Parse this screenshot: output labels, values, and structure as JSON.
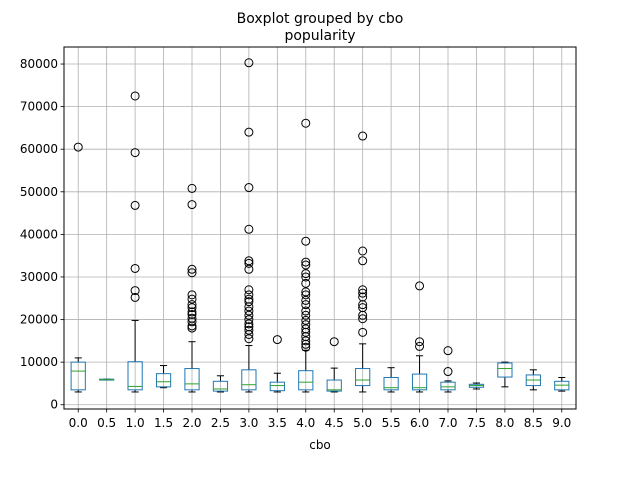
{
  "chart_data": {
    "type": "boxplot",
    "suptitle": "Boxplot grouped by cbo",
    "title": "popularity",
    "xlabel": "cbo",
    "ylabel": "",
    "ylim": [
      -1000,
      84000
    ],
    "yticks": [
      0,
      10000,
      20000,
      30000,
      40000,
      50000,
      60000,
      70000,
      80000
    ],
    "yticklabels": [
      "0",
      "10000",
      "20000",
      "30000",
      "40000",
      "50000",
      "60000",
      "70000",
      "80000"
    ],
    "grid": true,
    "colors": {
      "box": "#1f77b4",
      "median": "#2ca02c",
      "whisker": "#000000",
      "grid": "#b0b0b0",
      "outlier": "#000000"
    },
    "groups": [
      {
        "label": "0.0",
        "whislo": 3000,
        "q1": 3500,
        "med": 7900,
        "q3": 10000,
        "whishi": 11000,
        "fliers": [
          60500
        ]
      },
      {
        "label": "0.5",
        "whislo": 5800,
        "q1": 5800,
        "med": 5900,
        "q3": 6000,
        "whishi": 6000,
        "fliers": []
      },
      {
        "label": "1.0",
        "whislo": 3000,
        "q1": 3500,
        "med": 4300,
        "q3": 10100,
        "whishi": 19800,
        "fliers": [
          25200,
          26800,
          32000,
          46800,
          59200,
          72500
        ]
      },
      {
        "label": "1.5",
        "whislo": 4000,
        "q1": 4200,
        "med": 5400,
        "q3": 7300,
        "whishi": 9200,
        "fliers": []
      },
      {
        "label": "2.0",
        "whislo": 3000,
        "q1": 3500,
        "med": 4900,
        "q3": 8500,
        "whishi": 14800,
        "fliers": [
          18000,
          18500,
          19500,
          20300,
          21200,
          21800,
          22800,
          23500,
          24800,
          25800,
          31000,
          31800,
          47000,
          50800
        ]
      },
      {
        "label": "2.5",
        "whislo": 3000,
        "q1": 3200,
        "med": 3700,
        "q3": 5500,
        "whishi": 6800,
        "fliers": []
      },
      {
        "label": "3.0",
        "whislo": 3000,
        "q1": 3500,
        "med": 4700,
        "q3": 8200,
        "whishi": 13900,
        "fliers": [
          15500,
          16500,
          17500,
          18300,
          19000,
          20000,
          21000,
          22000,
          23000,
          24200,
          24800,
          25800,
          27000,
          31800,
          33200,
          33800,
          41200,
          51000,
          64000,
          80300
        ]
      },
      {
        "label": "3.5",
        "whislo": 3000,
        "q1": 3300,
        "med": 4500,
        "q3": 5300,
        "whishi": 7400,
        "fliers": [
          15300
        ]
      },
      {
        "label": "4.0",
        "whislo": 3000,
        "q1": 3500,
        "med": 5300,
        "q3": 8000,
        "whishi": 12800,
        "fliers": [
          13500,
          14200,
          15000,
          16000,
          17000,
          17800,
          18800,
          19800,
          21000,
          22000,
          23500,
          24500,
          25800,
          26500,
          28500,
          30000,
          30800,
          32800,
          33500,
          38400,
          66100
        ]
      },
      {
        "label": "4.5",
        "whislo": 3000,
        "q1": 3200,
        "med": 3500,
        "q3": 5800,
        "whishi": 8600,
        "fliers": [
          14800
        ]
      },
      {
        "label": "5.0",
        "whislo": 3000,
        "q1": 4500,
        "med": 5800,
        "q3": 8500,
        "whishi": 14300,
        "fliers": [
          17000,
          20200,
          21000,
          22800,
          23500,
          25300,
          26200,
          27000,
          33800,
          36100,
          63100
        ]
      },
      {
        "label": "5.5",
        "whislo": 3000,
        "q1": 3500,
        "med": 4000,
        "q3": 6400,
        "whishi": 8700,
        "fliers": []
      },
      {
        "label": "6.0",
        "whislo": 3000,
        "q1": 3500,
        "med": 4000,
        "q3": 7200,
        "whishi": 11500,
        "fliers": [
          13700,
          14800,
          27900
        ]
      },
      {
        "label": "7.0",
        "whislo": 3000,
        "q1": 3500,
        "med": 4200,
        "q3": 5300,
        "whishi": 5600,
        "fliers": [
          7800,
          12700
        ]
      },
      {
        "label": "7.5",
        "whislo": 3700,
        "q1": 4100,
        "med": 4500,
        "q3": 4800,
        "whishi": 5100,
        "fliers": []
      },
      {
        "label": "8.0",
        "whislo": 4200,
        "q1": 6500,
        "med": 8500,
        "q3": 9800,
        "whishi": 10000,
        "fliers": []
      },
      {
        "label": "8.5",
        "whislo": 3500,
        "q1": 4500,
        "med": 5800,
        "q3": 7000,
        "whishi": 8200,
        "fliers": []
      },
      {
        "label": "9.0",
        "whislo": 3200,
        "q1": 3500,
        "med": 4600,
        "q3": 5500,
        "whishi": 6400,
        "fliers": []
      }
    ]
  }
}
